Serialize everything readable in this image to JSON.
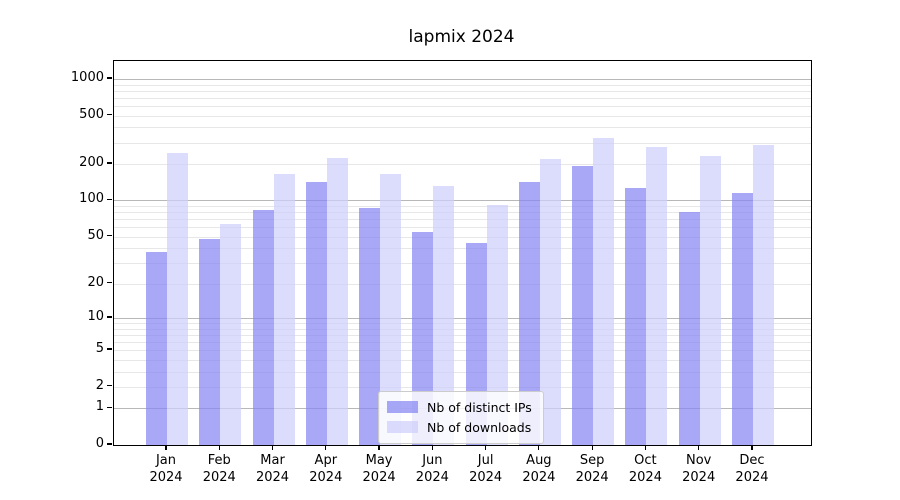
{
  "title": "lapmix 2024",
  "chart_data": {
    "type": "bar",
    "title": "lapmix 2024",
    "categories": [
      "Jan",
      "Feb",
      "Mar",
      "Apr",
      "May",
      "Jun",
      "Jul",
      "Aug",
      "Sep",
      "Oct",
      "Nov",
      "Dec"
    ],
    "x_year": "2024",
    "series": [
      {
        "name": "Nb of distinct IPs",
        "color": "#8686f2",
        "blended_color": "#a8a8f6",
        "values": [
          37,
          48,
          83,
          141,
          87,
          55,
          44,
          141,
          191,
          128,
          80,
          116
        ]
      },
      {
        "name": "Nb of downloads",
        "color": "#cecefb",
        "blended_color": "#dcdcf8",
        "values": [
          245,
          64,
          164,
          226,
          167,
          133,
          92,
          218,
          330,
          274,
          234,
          285
        ]
      }
    ],
    "y_ticks": [
      0,
      1,
      2,
      5,
      10,
      20,
      50,
      100,
      200,
      500,
      1000
    ],
    "y_gridlines_major": [
      1,
      10,
      100,
      1000
    ],
    "y_scale": "log10(1+v)",
    "ylim": [
      0,
      1400
    ],
    "grid": true,
    "legend_position": "lower center"
  }
}
